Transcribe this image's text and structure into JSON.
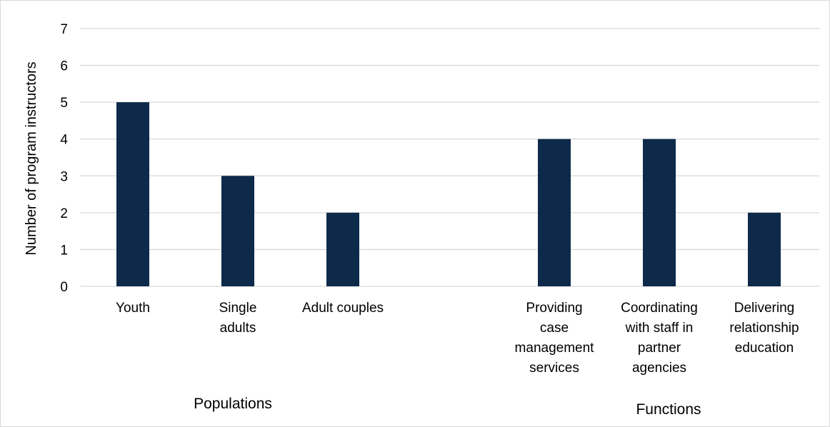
{
  "chart_data": {
    "type": "bar",
    "title": "",
    "xlabel": "",
    "ylabel": "Number of program instructors",
    "ylim": [
      0,
      7
    ],
    "yticks": [
      0,
      1,
      2,
      3,
      4,
      5,
      6,
      7
    ],
    "grid": true,
    "legend": "none",
    "bar_color": "#0d2a4a",
    "gridline_color": "#d9d9d9",
    "groups": [
      {
        "name": "Populations",
        "categories": [
          {
            "label": "Youth",
            "lines": [
              "Youth"
            ],
            "value": 5
          },
          {
            "label": "Single adults",
            "lines": [
              "Single",
              "adults"
            ],
            "value": 3
          },
          {
            "label": "Adult couples",
            "lines": [
              "Adult couples"
            ],
            "value": 2
          }
        ]
      },
      {
        "name": "Functions",
        "categories": [
          {
            "label": "Providing case management services",
            "lines": [
              "Providing",
              "case",
              "management",
              "services"
            ],
            "value": 4
          },
          {
            "label": "Coordinating with staff in partner agencies",
            "lines": [
              "Coordinating",
              "with staff in",
              "partner",
              "agencies"
            ],
            "value": 4
          },
          {
            "label": "Delivering relationship education",
            "lines": [
              "Delivering",
              "relationship",
              "education"
            ],
            "value": 2
          }
        ]
      }
    ]
  }
}
